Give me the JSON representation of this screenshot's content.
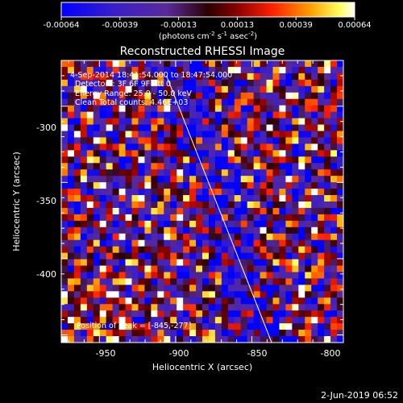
{
  "colorbar": {
    "ticks": [
      "-0.00064",
      "-0.00039",
      "-0.00013",
      "0.00013",
      "0.00039",
      "0.00064"
    ],
    "unit_prefix": "(photons cm",
    "unit_s1": "-2",
    "unit_mid1": " s",
    "unit_s2": "-1",
    "unit_mid2": " asec",
    "unit_s3": "-2",
    "unit_suffix": ")"
  },
  "chart_data": {
    "type": "heatmap",
    "title": "Reconstructed RHESSI Image",
    "xlabel": "Heliocentric X (arcsec)",
    "ylabel": "Heliocentric Y (arcsec)",
    "xlim": [
      -975,
      -790
    ],
    "ylim": [
      -455,
      -270
    ],
    "xticks": [
      "-950",
      "-900",
      "-850",
      "-800"
    ],
    "yticks": [
      "-300",
      "-350",
      "-400"
    ],
    "clim": [
      -0.00064,
      0.00064
    ],
    "colormap": "blue-purple-red-orange-yellow-white",
    "limb_line": {
      "x": [
        -906,
        -837
      ],
      "y": [
        -280,
        -455
      ]
    },
    "info_lines": [
      "4-Sep-2014 18:41:54.000 to 18:47:54.000",
      "Detectors: 3F 6F 9F  Att 0",
      "Energy Range: 25.0 - 50.0 keV",
      "Clean    Total counts: 4.46E+03"
    ],
    "peak_label": "Position of Peak = [-845,-277]",
    "peak": {
      "x": -845,
      "y": -277
    }
  },
  "footer": {
    "timestamp": "2-Jun-2019 06:52"
  }
}
